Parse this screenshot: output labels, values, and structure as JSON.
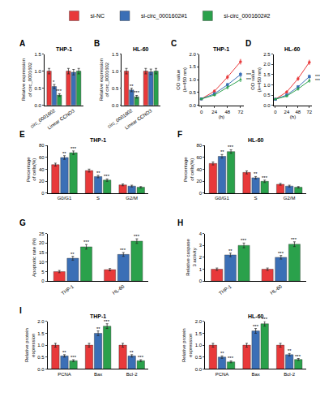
{
  "chart_data": [
    {
      "type": "bar",
      "title": "THP-1",
      "y_label": "Relative expression of circ_0001602",
      "categories": [
        "circ_0001602",
        "Linear CCND3"
      ],
      "series": [
        {
          "name": "si-NC",
          "color": "#e8393a",
          "values": [
            1.0,
            1.0
          ],
          "errors": [
            0.08,
            0.08
          ]
        },
        {
          "name": "si-circ_0001602#1",
          "color": "#3b6fb6",
          "values": [
            0.55,
            0.97
          ],
          "errors": [
            0.06,
            0.08
          ]
        },
        {
          "name": "si-circ_0001602#2",
          "color": "#2aa14b",
          "values": [
            0.3,
            1.0
          ],
          "errors": [
            0.04,
            0.08
          ]
        }
      ],
      "ylim": [
        0,
        1.5
      ],
      "yticks": [
        {
          "value": 0,
          "label": "0.0"
        },
        0.5,
        {
          "value": 1,
          "label": "1.0"
        },
        1.5
      ],
      "legend": "top",
      "annotations": [
        {
          "text": "A"
        },
        {
          "text": "*",
          "category": "circ_0001602",
          "series": "si-circ_0001602#1"
        },
        {
          "text": "***",
          "category": "circ_0001602",
          "series": "si-circ_0001602#2"
        }
      ]
    },
    {
      "type": "bar",
      "title": "HL-60",
      "y_label": "Relative expression of circ_0001602",
      "categories": [
        "circ_0001602",
        "Linear CCND3"
      ],
      "series": [
        {
          "name": "si-NC",
          "color": "#e8393a",
          "values": [
            1.0,
            1.0
          ],
          "errors": [
            0.08,
            0.08
          ]
        },
        {
          "name": "si-circ_0001602#1",
          "color": "#3b6fb6",
          "values": [
            0.45,
            0.98
          ],
          "errors": [
            0.05,
            0.08
          ]
        },
        {
          "name": "si-circ_0001602#2",
          "color": "#2aa14b",
          "values": [
            0.25,
            1.0
          ],
          "errors": [
            0.04,
            0.08
          ]
        }
      ],
      "ylim": [
        0,
        1.5
      ],
      "yticks": [
        {
          "value": 0,
          "label": "0.0"
        },
        0.5,
        {
          "value": 1,
          "label": "1.0"
        },
        1.5
      ],
      "annotations": [
        {
          "text": "B"
        },
        {
          "text": "**",
          "category": "circ_0001602",
          "series": "si-circ_0001602#1"
        },
        {
          "text": "***",
          "category": "circ_0001602",
          "series": "si-circ_0001602#2"
        }
      ]
    },
    {
      "type": "line",
      "title": "THP-1",
      "y_label": "OD value (λ=450 nm)",
      "x_label": "(h)",
      "x": [
        0,
        24,
        48,
        72
      ],
      "series": [
        {
          "name": "si-NC",
          "color": "#e8393a",
          "marker": "circle",
          "values": [
            0.25,
            0.55,
            1.1,
            1.7
          ],
          "errors": [
            0.03,
            0.05,
            0.07,
            0.09
          ]
        },
        {
          "name": "si-circ_0001602#1",
          "color": "#3b6fb6",
          "marker": "square",
          "values": [
            0.25,
            0.45,
            0.8,
            1.2
          ],
          "errors": [
            0.03,
            0.04,
            0.06,
            0.08
          ]
        },
        {
          "name": "si-circ_0001602#2",
          "color": "#2aa14b",
          "marker": "triangle-up",
          "values": [
            0.25,
            0.4,
            0.7,
            1.0
          ],
          "errors": [
            0.03,
            0.04,
            0.06,
            0.07
          ]
        }
      ],
      "xlim": [
        -4,
        78
      ],
      "xticks": [
        0,
        24,
        48,
        72
      ],
      "ylim": [
        0,
        2
      ],
      "yticks": [
        {
          "value": 0,
          "label": "0.0"
        },
        0.5,
        {
          "value": 1,
          "label": "1.0"
        },
        1.5,
        {
          "value": 2,
          "label": "2.0"
        }
      ],
      "annotations": [
        {
          "text": "C"
        },
        {
          "text": "***",
          "x": 72,
          "series": "si-circ_0001602#1"
        },
        {
          "text": "***",
          "x": 72,
          "series": "si-circ_0001602#2"
        }
      ]
    },
    {
      "type": "line",
      "title": "HL-60",
      "y_label": "OD value (λ=450 nm)",
      "x_label": "(h)",
      "x": [
        0,
        24,
        48,
        72
      ],
      "series": [
        {
          "name": "si-NC",
          "color": "#e8393a",
          "marker": "circle",
          "values": [
            0.3,
            0.65,
            1.3,
            2.1
          ],
          "errors": [
            0.03,
            0.05,
            0.08,
            0.1
          ]
        },
        {
          "name": "si-circ_0001602#1",
          "color": "#3b6fb6",
          "marker": "square",
          "values": [
            0.3,
            0.5,
            0.9,
            1.4
          ],
          "errors": [
            0.03,
            0.04,
            0.06,
            0.08
          ]
        },
        {
          "name": "si-circ_0001602#2",
          "color": "#2aa14b",
          "marker": "triangle-up",
          "values": [
            0.3,
            0.45,
            0.8,
            1.2
          ],
          "errors": [
            0.03,
            0.04,
            0.06,
            0.07
          ]
        }
      ],
      "xlim": [
        -4,
        78
      ],
      "xticks": [
        0,
        24,
        48,
        72
      ],
      "ylim": [
        0,
        2.5
      ],
      "yticks": [
        {
          "value": 0,
          "label": "0.0"
        },
        0.5,
        {
          "value": 1,
          "label": "1.0"
        },
        1.5,
        {
          "value": 2,
          "label": "2.0"
        },
        2.5
      ],
      "annotations": [
        {
          "text": "D"
        },
        {
          "text": "***",
          "x": 72,
          "series": "si-circ_0001602#1"
        },
        {
          "text": "***",
          "x": 72,
          "series": "si-circ_0001602#2"
        }
      ]
    },
    {
      "type": "bar",
      "title": "THP-1",
      "y_label": "Percentage of cells(%)",
      "categories": [
        "G0/G1",
        "S",
        "G2/M"
      ],
      "series": [
        {
          "name": "si-NC",
          "color": "#e8393a",
          "values": [
            48,
            38,
            14
          ],
          "errors": [
            2.5,
            2.5,
            1.5
          ]
        },
        {
          "name": "si-circ_0001602#1",
          "color": "#3b6fb6",
          "values": [
            60,
            28,
            12
          ],
          "errors": [
            3,
            2,
            1.5
          ]
        },
        {
          "name": "si-circ_0001602#2",
          "color": "#2aa14b",
          "values": [
            68,
            22,
            10
          ],
          "errors": [
            3,
            2,
            1.2
          ]
        }
      ],
      "ylim": [
        0,
        80
      ],
      "yticks": [
        0,
        20,
        40,
        60,
        80
      ],
      "annotations": [
        {
          "text": "E"
        },
        {
          "text": "**",
          "category": "G0/G1",
          "series": "si-circ_0001602#1"
        },
        {
          "text": "***",
          "category": "G0/G1",
          "series": "si-circ_0001602#2"
        },
        {
          "text": "**",
          "category": "S",
          "series": "si-circ_0001602#1"
        },
        {
          "text": "***",
          "category": "S",
          "series": "si-circ_0001602#2"
        }
      ]
    },
    {
      "type": "bar",
      "title": "HL-60",
      "y_label": "Percentage of cells(%)",
      "categories": [
        "G0/G1",
        "S",
        "G2/M"
      ],
      "series": [
        {
          "name": "si-NC",
          "color": "#e8393a",
          "values": [
            50,
            35,
            15
          ],
          "errors": [
            2.5,
            2.5,
            1.5
          ]
        },
        {
          "name": "si-circ_0001602#1",
          "color": "#3b6fb6",
          "values": [
            62,
            26,
            12
          ],
          "errors": [
            3,
            2,
            1.5
          ]
        },
        {
          "name": "si-circ_0001602#2",
          "color": "#2aa14b",
          "values": [
            70,
            20,
            10
          ],
          "errors": [
            3,
            2,
            1.2
          ]
        }
      ],
      "ylim": [
        0,
        80
      ],
      "yticks": [
        0,
        20,
        40,
        60,
        80
      ],
      "annotations": [
        {
          "text": "F"
        },
        {
          "text": "**",
          "category": "G0/G1",
          "series": "si-circ_0001602#1"
        },
        {
          "text": "***",
          "category": "G0/G1",
          "series": "si-circ_0001602#2"
        },
        {
          "text": "**",
          "category": "S",
          "series": "si-circ_0001602#1"
        },
        {
          "text": "***",
          "category": "S",
          "series": "si-circ_0001602#2"
        }
      ]
    },
    {
      "type": "bar",
      "y_label": "Apoptotic rate (%)",
      "categories": [
        "THP-1",
        "HL-60"
      ],
      "series": [
        {
          "name": "si-NC",
          "color": "#e8393a",
          "values": [
            5,
            6
          ],
          "errors": [
            0.6,
            0.6
          ]
        },
        {
          "name": "si-circ_0001602#1",
          "color": "#3b6fb6",
          "values": [
            12,
            14
          ],
          "errors": [
            1,
            1
          ]
        },
        {
          "name": "si-circ_0001602#2",
          "color": "#2aa14b",
          "values": [
            18,
            21
          ],
          "errors": [
            1.2,
            1.2
          ]
        }
      ],
      "ylim": [
        0,
        25
      ],
      "yticks": [
        0,
        5,
        10,
        15,
        20,
        25
      ],
      "annotations": [
        {
          "text": "G"
        },
        {
          "text": "**",
          "category": "THP-1",
          "series": "si-circ_0001602#1"
        },
        {
          "text": "***",
          "category": "THP-1",
          "series": "si-circ_0001602#2"
        },
        {
          "text": "***",
          "category": "HL-60",
          "series": "si-circ_0001602#1"
        },
        {
          "text": "***",
          "category": "HL-60",
          "series": "si-circ_0001602#2"
        }
      ]
    },
    {
      "type": "bar",
      "y_label": "Relative caspase 3 activity",
      "categories": [
        "THP-1",
        "HL-60"
      ],
      "series": [
        {
          "name": "si-NC",
          "color": "#e8393a",
          "values": [
            1.0,
            1.0
          ],
          "errors": [
            0.1,
            0.1
          ]
        },
        {
          "name": "si-circ_0001602#1",
          "color": "#3b6fb6",
          "values": [
            2.2,
            2.0
          ],
          "errors": [
            0.15,
            0.15
          ]
        },
        {
          "name": "si-circ_0001602#2",
          "color": "#2aa14b",
          "values": [
            3.0,
            3.1
          ],
          "errors": [
            0.2,
            0.2
          ]
        }
      ],
      "ylim": [
        0,
        4
      ],
      "yticks": [
        0,
        1,
        2,
        3,
        4
      ],
      "annotations": [
        {
          "text": "H"
        },
        {
          "text": "**",
          "category": "THP-1",
          "series": "si-circ_0001602#1"
        },
        {
          "text": "***",
          "category": "THP-1",
          "series": "si-circ_0001602#2"
        },
        {
          "text": "***",
          "category": "HL-60",
          "series": "si-circ_0001602#1"
        },
        {
          "text": "***",
          "category": "HL-60",
          "series": "si-circ_0001602#2"
        }
      ]
    },
    {
      "type": "bar",
      "title": "THP-1",
      "y_label": "Relative protein expression",
      "categories": [
        "PCNA",
        "Bax",
        "Bcl-2"
      ],
      "series": [
        {
          "name": "si-NC",
          "color": "#e8393a",
          "values": [
            1.0,
            1.0,
            1.0
          ],
          "errors": [
            0.08,
            0.08,
            0.08
          ]
        },
        {
          "name": "si-circ_0001602#1",
          "color": "#3b6fb6",
          "values": [
            0.55,
            1.5,
            0.55
          ],
          "errors": [
            0.05,
            0.1,
            0.05
          ]
        },
        {
          "name": "si-circ_0001602#2",
          "color": "#2aa14b",
          "values": [
            0.35,
            1.8,
            0.35
          ],
          "errors": [
            0.04,
            0.1,
            0.04
          ]
        }
      ],
      "ylim": [
        0,
        2
      ],
      "yticks": [
        {
          "value": 0,
          "label": "0.0"
        },
        0.5,
        {
          "value": 1,
          "label": "1.0"
        },
        1.5,
        {
          "value": 2,
          "label": "2.0"
        }
      ],
      "annotations": [
        {
          "text": "I"
        },
        {
          "text": "**",
          "category": "PCNA",
          "series": "si-circ_0001602#1"
        },
        {
          "text": "***",
          "category": "PCNA",
          "series": "si-circ_0001602#2"
        },
        {
          "text": "**",
          "category": "Bax",
          "series": "si-circ_0001602#1"
        },
        {
          "text": "***",
          "category": "Bax",
          "series": "si-circ_0001602#2"
        },
        {
          "text": "**",
          "category": "Bcl-2",
          "series": "si-circ_0001602#1"
        },
        {
          "text": "***",
          "category": "Bcl-2",
          "series": "si-circ_0001602#2"
        }
      ]
    },
    {
      "type": "bar",
      "title": "HL-60",
      "y_label": "Relative protein expression",
      "categories": [
        "PCNA",
        "Bax",
        "Bcl-2"
      ],
      "series": [
        {
          "name": "si-NC",
          "color": "#e8393a",
          "values": [
            1.0,
            1.0,
            1.0
          ],
          "errors": [
            0.08,
            0.08,
            0.08
          ]
        },
        {
          "name": "si-circ_0001602#1",
          "color": "#3b6fb6",
          "values": [
            0.5,
            1.6,
            0.6
          ],
          "errors": [
            0.05,
            0.1,
            0.05
          ]
        },
        {
          "name": "si-circ_0001602#2",
          "color": "#2aa14b",
          "values": [
            0.3,
            1.9,
            0.4
          ],
          "errors": [
            0.04,
            0.1,
            0.04
          ]
        }
      ],
      "ylim": [
        0,
        2
      ],
      "yticks": [
        {
          "value": 0,
          "label": "0.0"
        },
        0.5,
        {
          "value": 1,
          "label": "1.0"
        },
        1.5,
        {
          "value": 2,
          "label": "2.0"
        }
      ],
      "annotations": [
        {
          "text": "**",
          "category": "PCNA",
          "series": "si-circ_0001602#1"
        },
        {
          "text": "***",
          "category": "PCNA",
          "series": "si-circ_0001602#2"
        },
        {
          "text": "***",
          "category": "Bax",
          "series": "si-circ_0001602#1"
        },
        {
          "text": "***",
          "category": "Bax",
          "series": "si-circ_0001602#2"
        },
        {
          "text": "**",
          "category": "Bcl-2",
          "series": "si-circ_0001602#1"
        },
        {
          "text": "***",
          "category": "Bcl-2",
          "series": "si-circ_0001602#2"
        }
      ]
    }
  ]
}
